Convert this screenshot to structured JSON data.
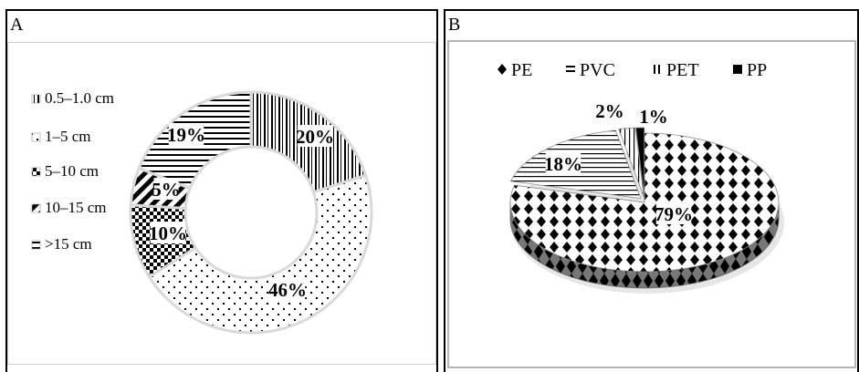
{
  "panels": {
    "a_label": "A",
    "b_label": "B"
  },
  "chart_data": [
    {
      "type": "pie",
      "subtype": "donut",
      "categories": [
        "0.5–1.0 cm",
        "1–5 cm",
        "5–10 cm",
        "10–15 cm",
        ">15 cm"
      ],
      "values": [
        20,
        46,
        10,
        5,
        19
      ],
      "data_labels": [
        "20%",
        "46%",
        "10%",
        "5%",
        "19%"
      ],
      "legend_position": "left"
    },
    {
      "type": "pie",
      "subtype": "3d",
      "categories": [
        "PE",
        "PVC",
        "PET",
        "PP"
      ],
      "values": [
        79,
        18,
        2,
        1
      ],
      "data_labels": [
        "79%",
        "18%",
        "2%",
        "1%"
      ],
      "legend_position": "top"
    }
  ]
}
